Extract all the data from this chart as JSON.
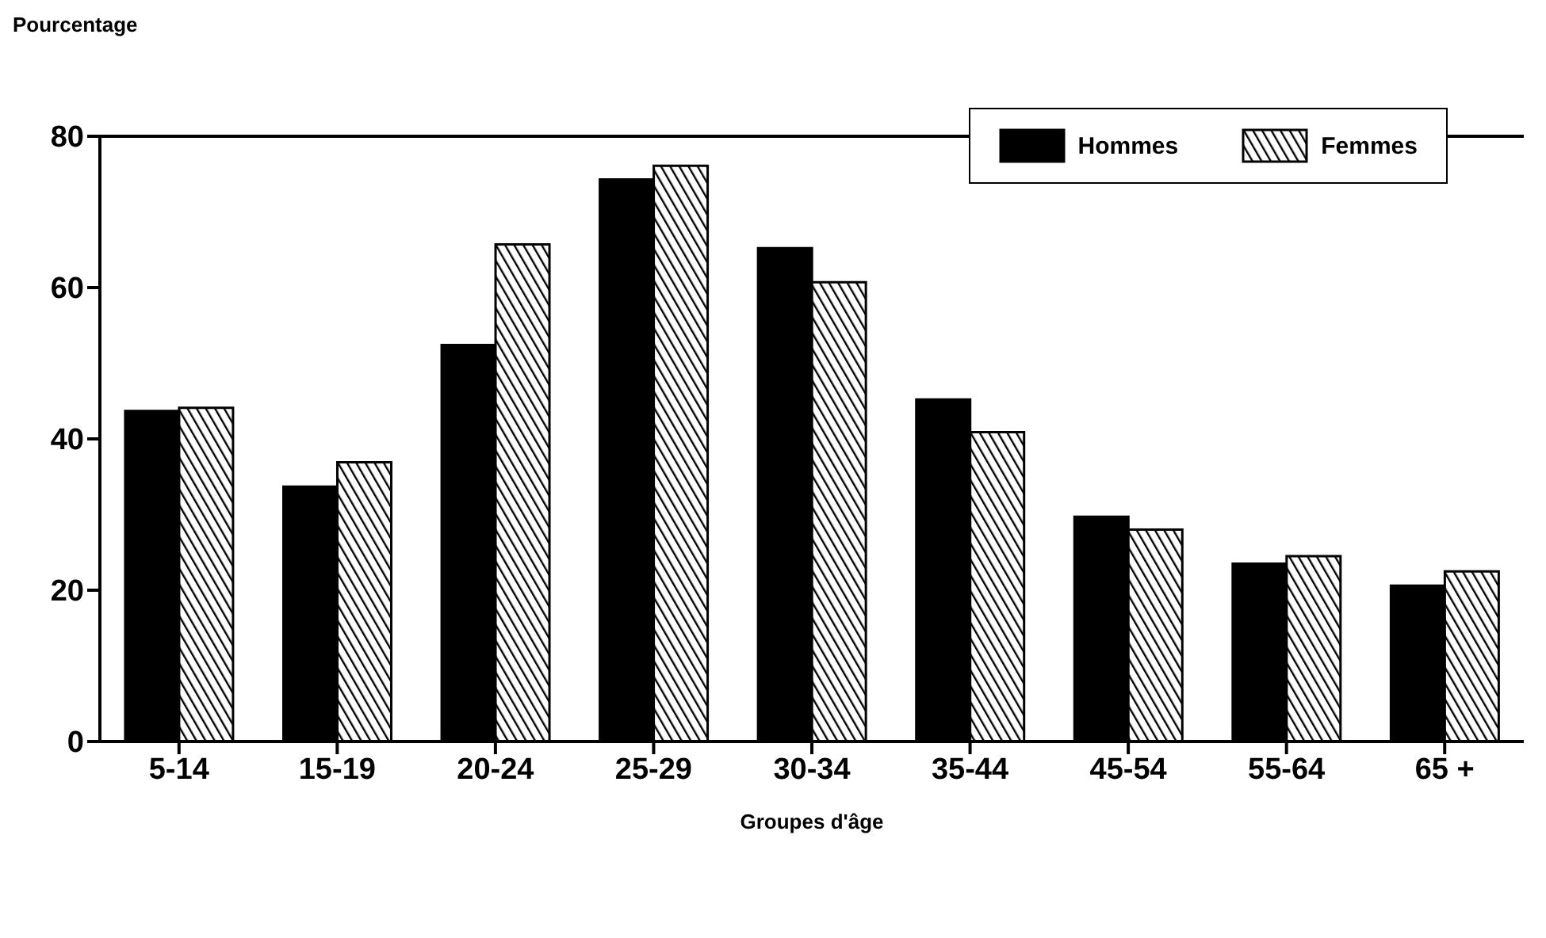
{
  "chart_data": {
    "type": "bar",
    "ylabel": "Pourcentage",
    "xlabel": "Groupes d'âge",
    "categories": [
      "5-14",
      "15-19",
      "20-24",
      "25-29",
      "30-34",
      "35-44",
      "45-54",
      "55-64",
      "65 +"
    ],
    "series": [
      {
        "name": "Hommes",
        "color": "#000000",
        "values": [
          43.7,
          33.7,
          52.4,
          74.3,
          65.2,
          45.2,
          29.7,
          23.5,
          20.6
        ]
      },
      {
        "name": "Femmes",
        "color": "#000000",
        "values": [
          44.1,
          36.9,
          65.7,
          76.1,
          60.7,
          40.9,
          28.0,
          24.5,
          22.5
        ]
      }
    ],
    "ylim": [
      0,
      80
    ],
    "yticks": [
      0,
      20,
      40,
      60,
      80
    ],
    "grid": false,
    "legend": "top right"
  }
}
